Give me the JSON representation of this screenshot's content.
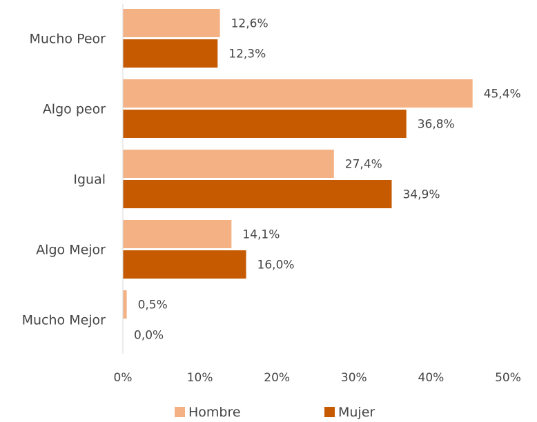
{
  "chart_data": {
    "type": "bar",
    "orientation": "horizontal",
    "categories": [
      "Mucho Peor",
      "Algo peor",
      "Igual",
      "Algo Mejor",
      "Mucho Mejor"
    ],
    "series": [
      {
        "name": "Hombre",
        "color": "#f4b183",
        "values": [
          12.6,
          45.4,
          27.4,
          14.1,
          0.5
        ],
        "labels": [
          "12,6%",
          "45,4%",
          "27,4%",
          "14,1%",
          "0,5%"
        ]
      },
      {
        "name": "Mujer",
        "color": "#c55a00",
        "values": [
          12.3,
          36.8,
          34.9,
          16.0,
          0.0
        ],
        "labels": [
          "12,3%",
          "36,8%",
          "34,9%",
          "16,0%",
          "0,0%"
        ]
      }
    ],
    "xlim": [
      0,
      50
    ],
    "xticks": [
      0,
      10,
      20,
      30,
      40,
      50
    ],
    "xtick_labels": [
      "0%",
      "10%",
      "20%",
      "30%",
      "40%",
      "50%"
    ],
    "grid": false,
    "legend_position": "bottom"
  }
}
